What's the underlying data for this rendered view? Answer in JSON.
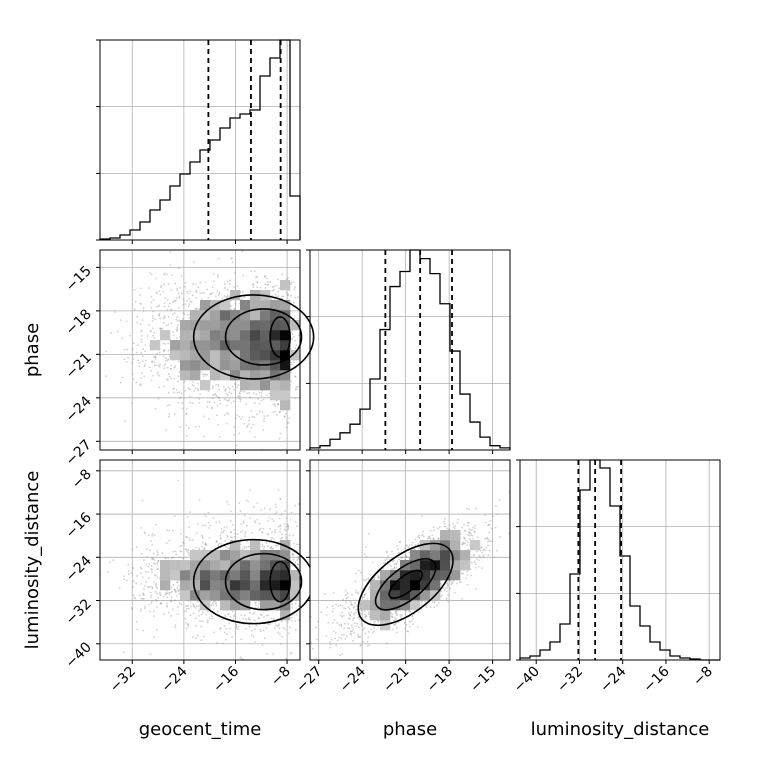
{
  "chart_data": {
    "type": "corner",
    "parameters": [
      "geocent_time",
      "phase",
      "luminosity_distance"
    ],
    "axis_labels": {
      "x": [
        "geocent_time",
        "phase",
        "luminosity_distance"
      ],
      "y": [
        "phase",
        "luminosity_distance"
      ]
    },
    "ranges": {
      "geocent_time": [
        -37,
        -6
      ],
      "phase": [
        -27.6,
        -13.8
      ],
      "luminosity_distance": [
        -43,
        -6
      ]
    },
    "ticks": {
      "geocent_time": [
        -32,
        -24,
        -16,
        -8
      ],
      "phase": [
        -27,
        -24,
        -21,
        -18,
        -15
      ],
      "luminosity_distance": [
        -40,
        -32,
        -24,
        -16,
        -8
      ]
    },
    "tick_labels": {
      "geocent_time": [
        "−32",
        "−24",
        "−16",
        "−8"
      ],
      "phase": [
        "−27",
        "−24",
        "−21",
        "−18",
        "−15"
      ],
      "luminosity_distance": [
        "−40",
        "−32",
        "−24",
        "−16",
        "−8"
      ]
    },
    "histograms": {
      "geocent_time": {
        "bin_edges": [
          -37,
          -35.45,
          -33.9,
          -32.35,
          -30.8,
          -29.25,
          -27.7,
          -26.15,
          -24.6,
          -23.05,
          -21.5,
          -19.95,
          -18.4,
          -16.85,
          -15.3,
          -13.75,
          -12.2,
          -10.65,
          -9.1,
          -7.55,
          -6
        ],
        "counts": [
          0.005,
          0.01,
          0.025,
          0.05,
          0.09,
          0.15,
          0.2,
          0.27,
          0.33,
          0.39,
          0.45,
          0.5,
          0.56,
          0.61,
          0.63,
          0.65,
          0.82,
          0.91,
          1.0,
          0.22
        ],
        "quantiles": [
          -20.2,
          -13.6,
          -9.0
        ]
      },
      "phase": {
        "bin_edges": [
          -27.6,
          -26.91,
          -26.22,
          -25.53,
          -24.84,
          -24.15,
          -23.46,
          -22.77,
          -22.08,
          -21.39,
          -20.7,
          -20.01,
          -19.32,
          -18.63,
          -17.94,
          -17.25,
          -16.56,
          -15.87,
          -15.18,
          -14.49,
          -13.8
        ],
        "counts": [
          0.01,
          0.02,
          0.05,
          0.08,
          0.12,
          0.19,
          0.33,
          0.56,
          0.76,
          0.83,
          0.93,
          0.89,
          0.82,
          0.68,
          0.46,
          0.26,
          0.13,
          0.06,
          0.02,
          0.01
        ],
        "quantiles": [
          -22.4,
          -20.0,
          -17.8
        ]
      },
      "luminosity_distance": {
        "bin_edges": [
          -43,
          -41.15,
          -39.3,
          -37.45,
          -35.6,
          -33.75,
          -31.9,
          -30.05,
          -28.2,
          -26.35,
          -24.5,
          -22.65,
          -20.8,
          -18.95,
          -17.1,
          -15.25,
          -13.4,
          -11.55,
          -9.7,
          -7.85,
          -6
        ],
        "counts": [
          0.01,
          0.02,
          0.05,
          0.09,
          0.18,
          0.43,
          0.85,
          1.0,
          0.96,
          0.77,
          0.52,
          0.27,
          0.17,
          0.09,
          0.05,
          0.02,
          0.01,
          0.005,
          0,
          0
        ],
        "quantiles": [
          -32.2,
          -29.1,
          -24.3
        ]
      }
    },
    "pairs": [
      {
        "x": "geocent_time",
        "y": "phase",
        "density_mode": {
          "x": -9,
          "y": -19.8
        },
        "correlation": 0.05
      },
      {
        "x": "geocent_time",
        "y": "luminosity_distance",
        "density_mode": {
          "x": -9,
          "y": -28.5
        },
        "correlation": 0.05
      },
      {
        "x": "phase",
        "y": "luminosity_distance",
        "density_mode": {
          "x": -21,
          "y": -29
        },
        "correlation": 0.72
      }
    ],
    "contour_levels": 3,
    "grid": true,
    "style": {
      "line_color": "#000000",
      "grid_color": "#b0b0b0",
      "scatter_color": "#9a9a9a"
    }
  }
}
